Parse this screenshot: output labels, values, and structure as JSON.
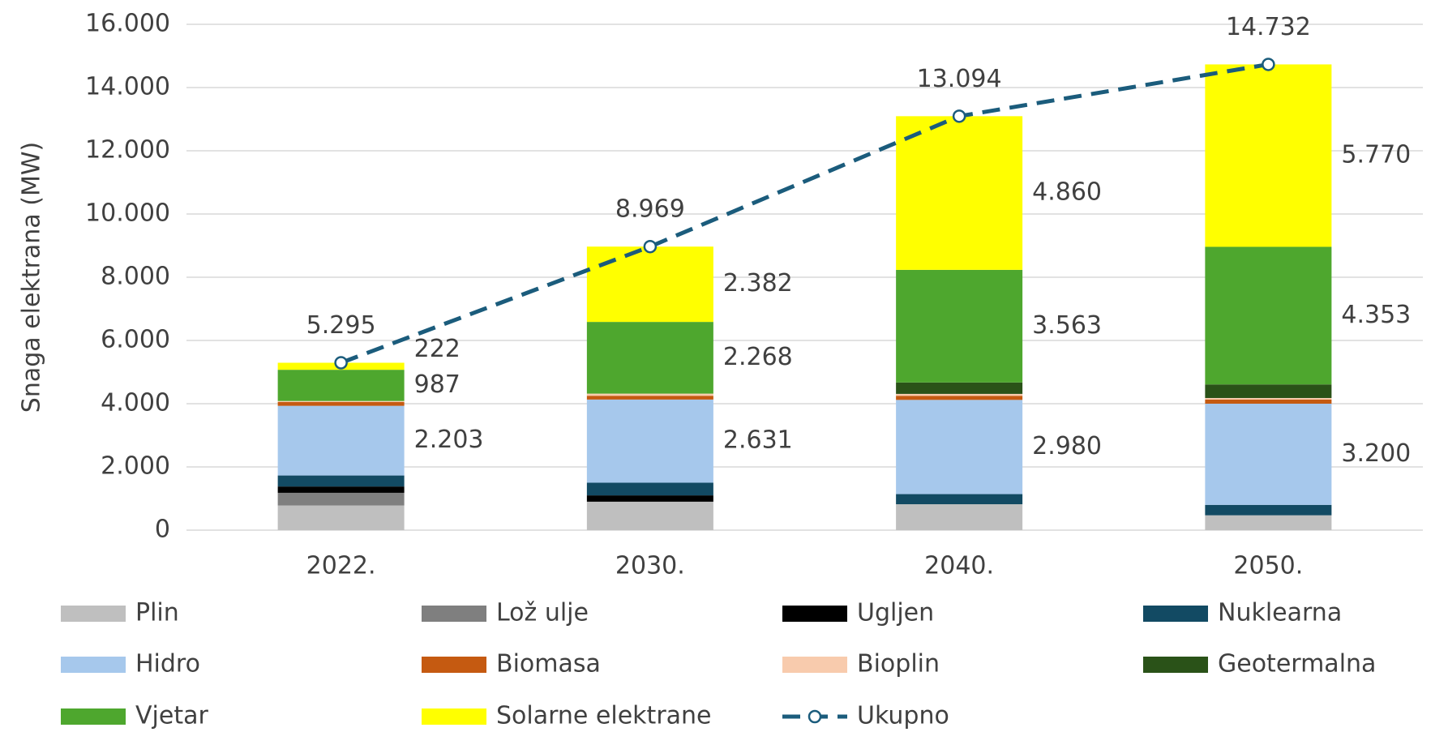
{
  "chart_data": {
    "type": "bar",
    "stacked": true,
    "y_label": "Snaga elektrana (MW)",
    "categories": [
      "2022.",
      "2030.",
      "2040.",
      "2050."
    ],
    "ylim": [
      0,
      16000
    ],
    "yticks": [
      {
        "value": 0,
        "label": "0"
      },
      {
        "value": 2000,
        "label": "2.000"
      },
      {
        "value": 4000,
        "label": "4.000"
      },
      {
        "value": 6000,
        "label": "6.000"
      },
      {
        "value": 8000,
        "label": "8.000"
      },
      {
        "value": 10000,
        "label": "10.000"
      },
      {
        "value": 12000,
        "label": "12.000"
      },
      {
        "value": 14000,
        "label": "14.000"
      },
      {
        "value": 16000,
        "label": "16.000"
      }
    ],
    "grid": true,
    "legend": "bottom",
    "series": [
      {
        "name": "Plin",
        "color": "#bfbfbf",
        "values": [
          781,
          900,
          820,
          470
        ]
      },
      {
        "name": "Lož ulje",
        "color": "#7f7f7f",
        "values": [
          400,
          0,
          0,
          0
        ]
      },
      {
        "name": "Ugljen",
        "color": "#000000",
        "values": [
          200,
          200,
          0,
          0
        ]
      },
      {
        "name": "Nuklearna",
        "color": "#124a63",
        "values": [
          348,
          400,
          320,
          330
        ]
      },
      {
        "name": "Hidro",
        "color": "#a6c8ec",
        "values": [
          2203,
          2631,
          2980,
          3200
        ],
        "value_labels": [
          "2.203",
          "2.631",
          "2.980",
          "3.200"
        ]
      },
      {
        "name": "Biomasa",
        "color": "#c55a11",
        "values": [
          120,
          120,
          130,
          130
        ]
      },
      {
        "name": "Bioplin",
        "color": "#f8cbad",
        "values": [
          34,
          68,
          60,
          50
        ]
      },
      {
        "name": "Geotermalna",
        "color": "#2a5218",
        "values": [
          0,
          0,
          361,
          429
        ]
      },
      {
        "name": "Vjetar",
        "color": "#4ea72e",
        "values": [
          987,
          2268,
          3563,
          4353
        ],
        "value_labels": [
          "987",
          "2.268",
          "3.563",
          "4.353"
        ]
      },
      {
        "name": "Solarne elektrane",
        "color": "#ffff00",
        "values": [
          222,
          2382,
          4860,
          5770
        ],
        "value_labels": [
          "222",
          "2.382",
          "4.860",
          "5.770"
        ]
      },
      {
        "name": "Ukupno",
        "type": "line",
        "color": "#1b5c7c",
        "values": [
          5295,
          8969,
          13094,
          14732
        ],
        "value_labels": [
          "5.295",
          "8.969",
          "13.094",
          "14.732"
        ]
      }
    ]
  }
}
